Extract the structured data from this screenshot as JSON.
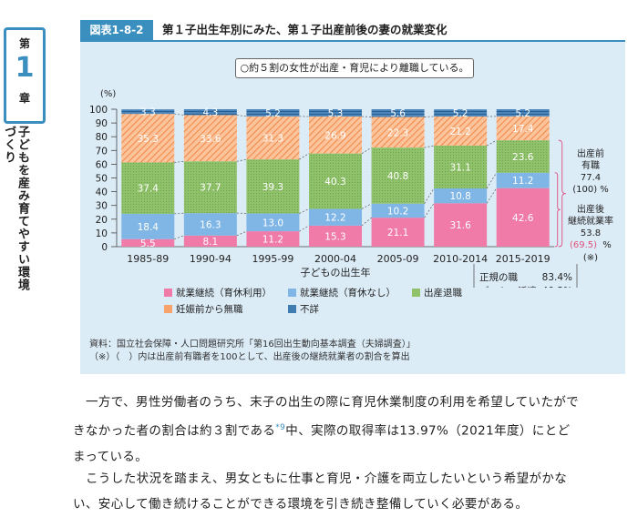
{
  "sidebar": {
    "chapter_prefix": "第",
    "chapter_number": "1",
    "chapter_suffix": "章",
    "chapter_title": "子どもを産み育てやすい環境づくり"
  },
  "figure": {
    "id": "図表1-8-2",
    "title": "第１子出生年別にみた、第１子出産前後の妻の就業変化",
    "note": "○約５割の女性が出産・育児により離職している。",
    "legend": [
      {
        "label": "就業継続（育休利用）",
        "color": "#f07aa8"
      },
      {
        "label": "就業継続（育休なし）",
        "color": "#7fb6e6"
      },
      {
        "label": "出産退職",
        "color": "#8fc26a"
      },
      {
        "label": "妊娠前から無職",
        "color": "#f7a36b"
      },
      {
        "label": "不詳",
        "color": "#3f7cb0"
      }
    ],
    "source_line1": "資料：国立社会保障・人口問題研究所「第16回出生動向基本調査（夫婦調査）」",
    "source_line2": "（※）（　）内は出産前有職者を100として、出産後の継続就業者の割合を算出"
  },
  "chart_data": {
    "type": "bar",
    "stacked": true,
    "ylabel": "(%)",
    "xlabel": "子どもの出生年",
    "ylim": [
      0,
      100
    ],
    "yticks": [
      0,
      10,
      20,
      30,
      40,
      50,
      60,
      70,
      80,
      90,
      100
    ],
    "categories": [
      "1985-89",
      "1990-94",
      "1995-99",
      "2000-04",
      "2005-09",
      "2010-2014",
      "2015-2019"
    ],
    "series": [
      {
        "name": "就業継続（育休利用）",
        "color": "#f07aa8",
        "values": [
          5.5,
          8.1,
          11.2,
          15.3,
          21.1,
          31.6,
          42.6
        ]
      },
      {
        "name": "就業継続（育休なし）",
        "color": "#7fb6e6",
        "values": [
          18.4,
          16.3,
          13.0,
          12.2,
          10.2,
          10.8,
          11.2
        ]
      },
      {
        "name": "出産退職",
        "color": "#8fc26a",
        "values": [
          37.4,
          37.7,
          39.3,
          40.3,
          40.8,
          31.1,
          23.6
        ]
      },
      {
        "name": "妊娠前から無職",
        "color": "#f7a36b",
        "values": [
          35.3,
          33.6,
          31.3,
          26.9,
          22.3,
          21.2,
          17.4
        ]
      },
      {
        "name": "不詳",
        "color": "#3f7cb0",
        "values": [
          3.3,
          4.3,
          5.2,
          5.3,
          5.6,
          5.2,
          5.2
        ]
      }
    ],
    "annotations": {
      "pre_birth_label": "出産前\n有職",
      "pre_birth_value": "77.4",
      "pre_birth_base": "(100) %",
      "post_birth_label": "出産後\n継続就業率",
      "post_birth_value": "53.8",
      "post_birth_ratio": "(69.5)",
      "post_birth_unit": "%",
      "post_birth_mark": "(※)",
      "regular_label": "正規の職",
      "regular_value": "83.4%",
      "part_label": "パート・派遣",
      "part_value": "40.3%"
    }
  },
  "body": {
    "para1_a": "一方で、男性労働者のうち、末子の出生の際に育児休業制度の利用を希望していたがで",
    "para1_b": "きなかった者の割合は約３割である",
    "para1_ref": "*9",
    "para1_c": "中、実際の取得率は13.97%（2021年度）にとど",
    "para1_d": "まっている。",
    "para2_a": "こうした状況を踏まえ、男女ともに仕事と育児・介護を両立したいという希望がかな",
    "para2_b": "い、安心して働き続けることができる環境を引き続き整備していく必要がある。"
  }
}
